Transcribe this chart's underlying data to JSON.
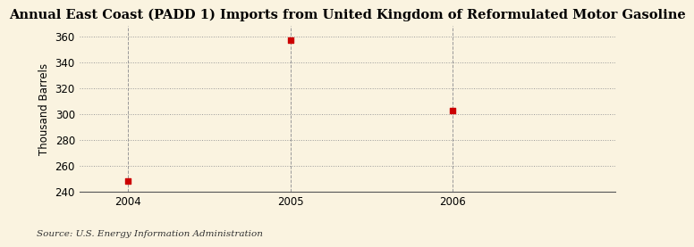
{
  "title": "Annual East Coast (PADD 1) Imports from United Kingdom of Reformulated Motor Gasoline",
  "ylabel": "Thousand Barrels",
  "source": "Source: U.S. Energy Information Administration",
  "x_values": [
    2004,
    2005,
    2006
  ],
  "y_values": [
    248,
    357,
    303
  ],
  "marker_color": "#cc0000",
  "marker_size": 4,
  "background_color": "#faf3e0",
  "plot_bg_color": "#faf3e0",
  "grid_color": "#999999",
  "vline_color": "#999999",
  "ylim": [
    240,
    368
  ],
  "xlim": [
    2003.7,
    2007.0
  ],
  "yticks": [
    240,
    260,
    280,
    300,
    320,
    340,
    360
  ],
  "xticks": [
    2004,
    2005,
    2006
  ],
  "title_fontsize": 10.5,
  "axis_label_fontsize": 8.5,
  "tick_fontsize": 8.5,
  "source_fontsize": 7.5
}
